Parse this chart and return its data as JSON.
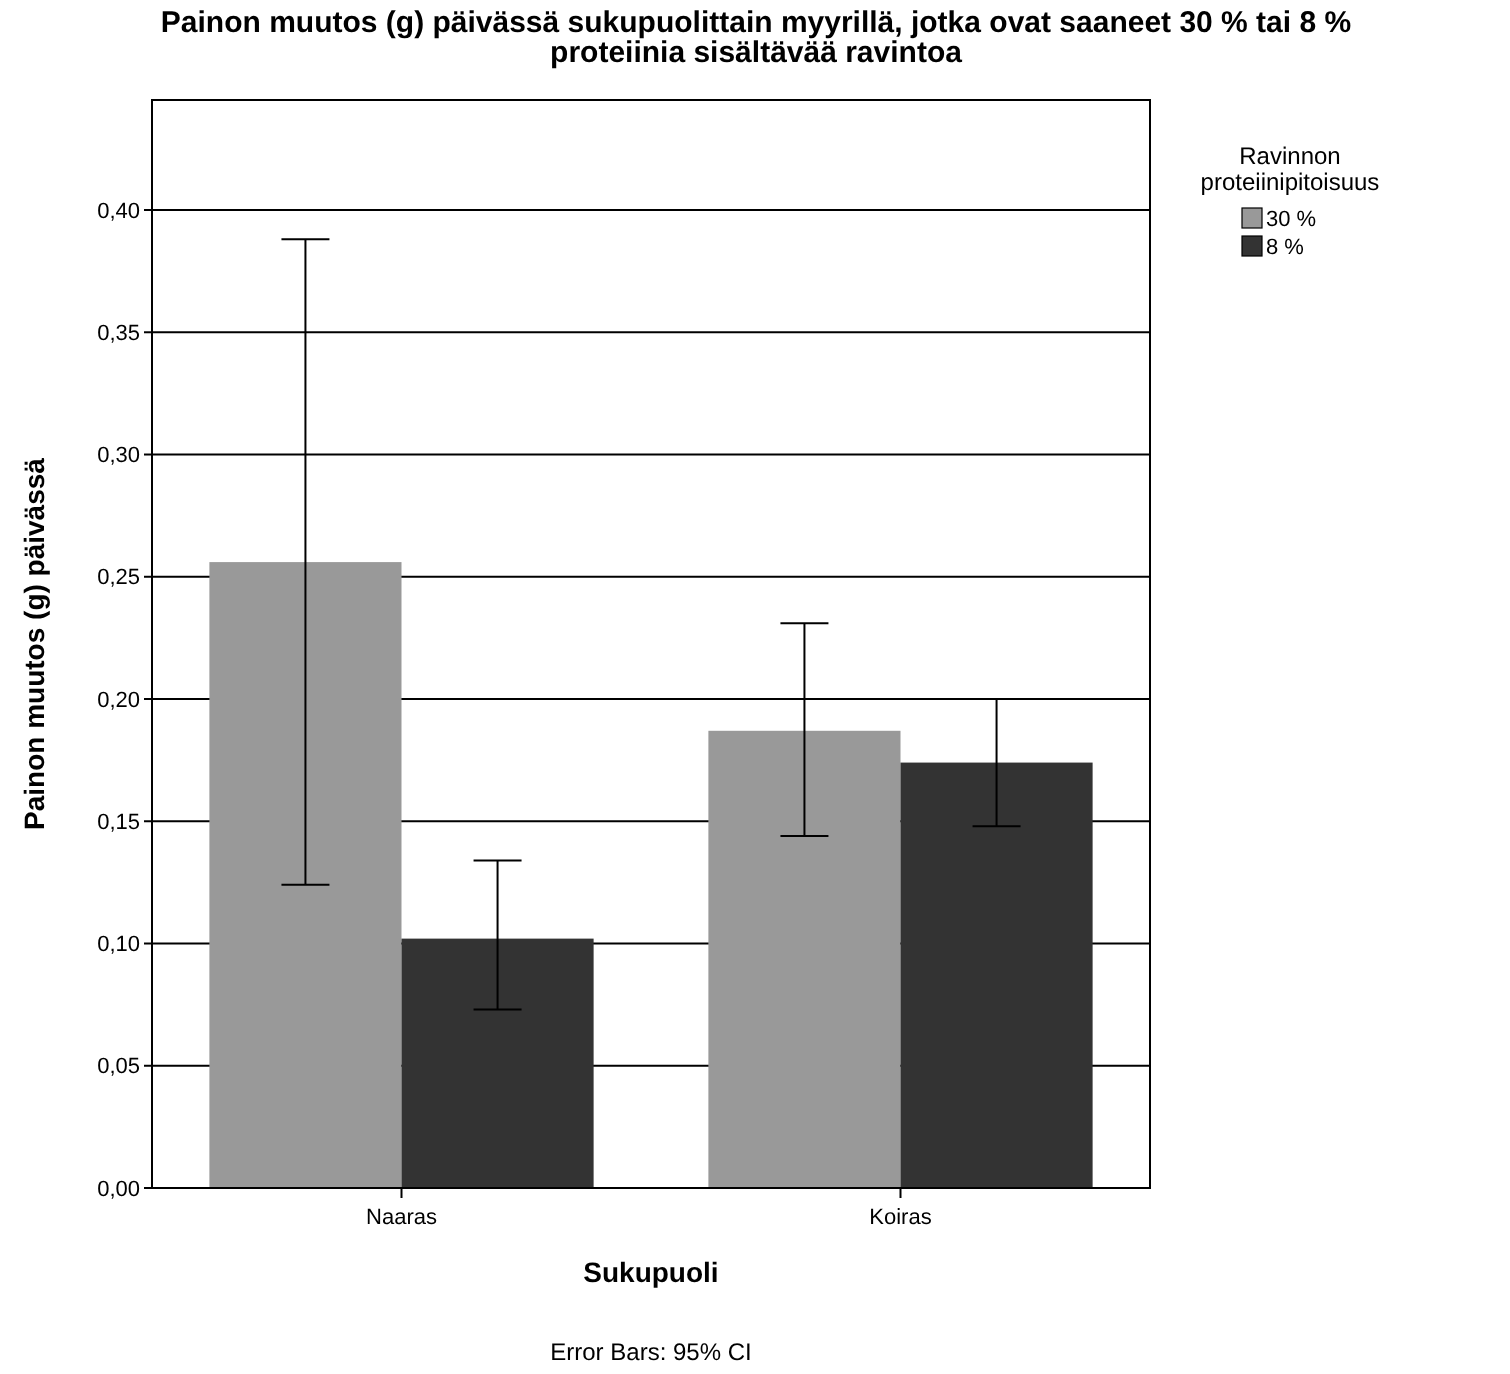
{
  "chart_data": {
    "type": "bar",
    "title": "Painon muutos (g) päivässä sukupuolittain myyrillä, jotka ovat saaneet 30 % tai 8 % proteiinia sisältävää ravintoa",
    "xlabel": "Sukupuoli",
    "ylabel": "Painon muutos (g) päivässä",
    "legend_title": "Ravinnon proteiinipitoisuus",
    "annotations": [
      "Error Bars: 95% CI"
    ],
    "categories": [
      "Naaras",
      "Koiras"
    ],
    "series": [
      {
        "name": "30 %",
        "color": "#999999",
        "values": [
          0.256,
          0.187
        ],
        "errors": [
          [
            0.124,
            0.388
          ],
          [
            0.144,
            0.231
          ]
        ]
      },
      {
        "name": "8 %",
        "color": "#333333",
        "values": [
          0.102,
          0.174
        ],
        "errors": [
          [
            0.073,
            0.134
          ],
          [
            0.148,
            0.2
          ]
        ]
      }
    ],
    "ylim": [
      0,
      0.445
    ],
    "yticks": [
      {
        "value": 0,
        "label": "0,00"
      },
      {
        "value": 0.05,
        "label": "0,05"
      },
      {
        "value": 0.1,
        "label": "0,10"
      },
      {
        "value": 0.15,
        "label": "0,15"
      },
      {
        "value": 0.2,
        "label": "0,20"
      },
      {
        "value": 0.25,
        "label": "0,25"
      },
      {
        "value": 0.3,
        "label": "0,30"
      },
      {
        "value": 0.35,
        "label": "0,35"
      },
      {
        "value": 0.4,
        "label": "0,40"
      }
    ],
    "grid": "y",
    "legend": "top right"
  }
}
